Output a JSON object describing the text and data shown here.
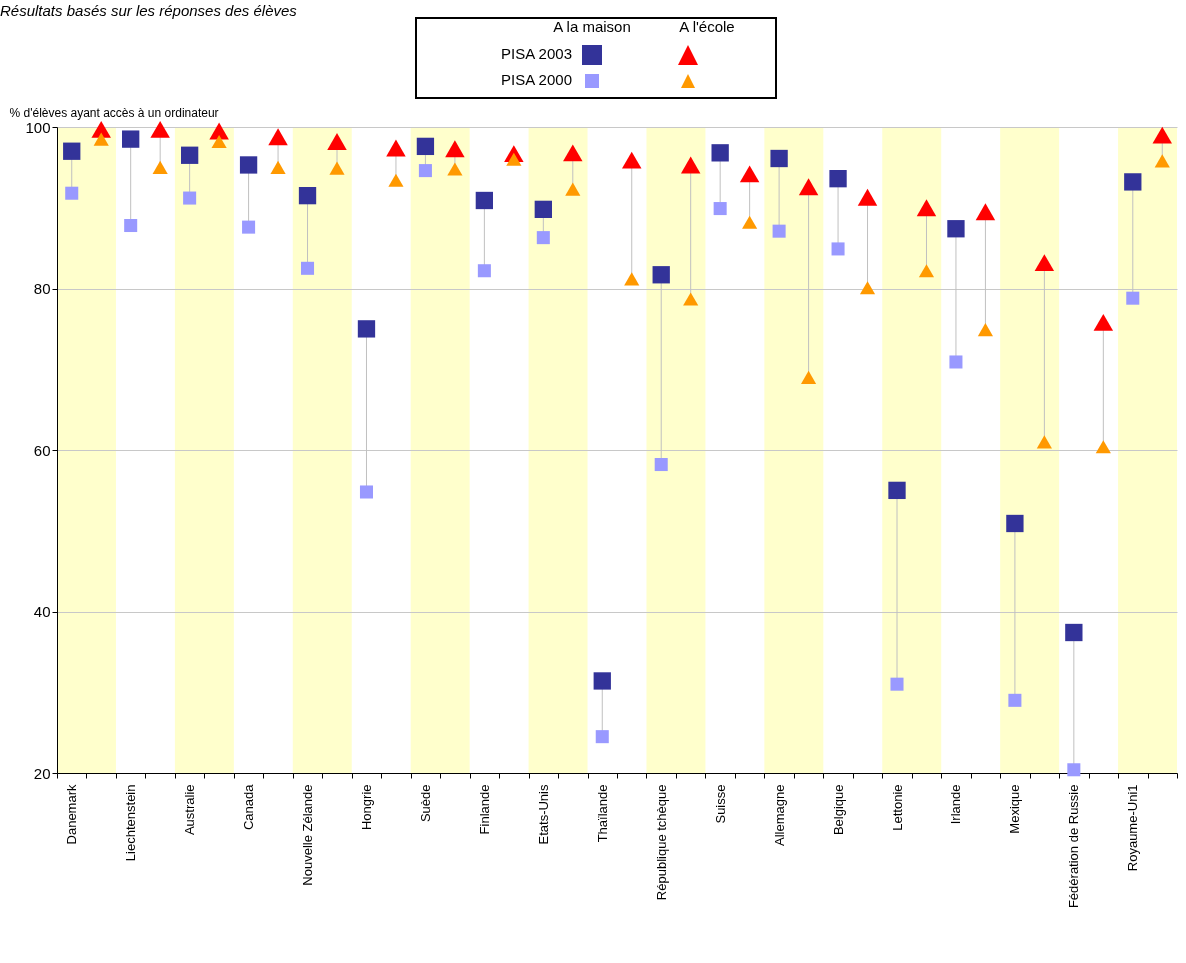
{
  "chart_data": {
    "type": "scatter",
    "title": "Résultats basés sur les réponses des élèves",
    "ylabel": "% d'élèves  ayant accès à un ordinateur",
    "categories": [
      "Danemark",
      null,
      "Liechtenstein",
      null,
      "Australie",
      null,
      "Canada",
      null,
      "Nouvelle Zélande",
      null,
      "Hongrie",
      null,
      "Suède",
      null,
      "Finlande",
      null,
      "Etats-Unis",
      null,
      "Thaïlande",
      null,
      "République tchèque",
      null,
      "Suisse",
      null,
      "Allemagne",
      null,
      "Belgique",
      null,
      "Lettonie",
      null,
      "Irlande",
      null,
      "Mexique",
      null,
      "Fédération de Russie",
      null,
      "Royaume-Uni1",
      null
    ],
    "series": [
      {
        "name": "PISA 2003",
        "color": "#333399",
        "marker": "square",
        "values": [
          97.0,
          null,
          98.5,
          null,
          96.5,
          null,
          95.3,
          null,
          91.5,
          null,
          75.0,
          null,
          97.6,
          null,
          90.9,
          null,
          89.8,
          null,
          31.4,
          null,
          81.7,
          null,
          96.8,
          null,
          96.1,
          null,
          93.6,
          null,
          55.0,
          null,
          87.4,
          null,
          50.9,
          null,
          37.4,
          null,
          93.2,
          null
        ]
      },
      {
        "name": "PISA 2000",
        "color": "#9999ff",
        "marker": "square",
        "values": [
          91.8,
          null,
          87.8,
          null,
          91.2,
          null,
          87.6,
          null,
          82.5,
          null,
          54.8,
          null,
          94.6,
          null,
          82.2,
          null,
          86.3,
          null,
          24.5,
          null,
          58.2,
          null,
          89.9,
          null,
          87.1,
          null,
          84.9,
          null,
          31.0,
          null,
          70.9,
          null,
          29.0,
          null,
          20.4,
          null,
          78.8,
          null
        ]
      },
      {
        "color": "#ff0000",
        "marker": "triangle",
        "values": [
          null,
          99.7,
          null,
          99.7,
          null,
          99.5,
          null,
          98.8,
          null,
          98.2,
          null,
          97.4,
          null,
          97.3,
          null,
          96.7,
          null,
          96.8,
          null,
          95.9,
          null,
          95.3,
          null,
          94.2,
          null,
          92.6,
          null,
          91.3,
          null,
          90.0,
          null,
          89.5,
          null,
          83.2,
          null,
          75.8,
          null,
          99.0
        ]
      },
      {
        "color": "#ff9900",
        "marker": "triangle",
        "values": [
          null,
          98.5,
          null,
          95.0,
          null,
          98.2,
          null,
          95.0,
          null,
          94.9,
          null,
          93.4,
          null,
          94.8,
          null,
          96.0,
          null,
          92.3,
          null,
          81.2,
          null,
          78.7,
          null,
          88.2,
          null,
          69.0,
          null,
          80.1,
          null,
          82.2,
          null,
          74.9,
          null,
          61.0,
          null,
          60.4,
          null,
          95.8
        ]
      }
    ],
    "annotations": [
      "A la maison",
      "A l'école"
    ],
    "ylim": [
      20,
      100
    ],
    "yticks": [
      20,
      40,
      60,
      80,
      100
    ],
    "grid": "y",
    "legend": "top"
  }
}
